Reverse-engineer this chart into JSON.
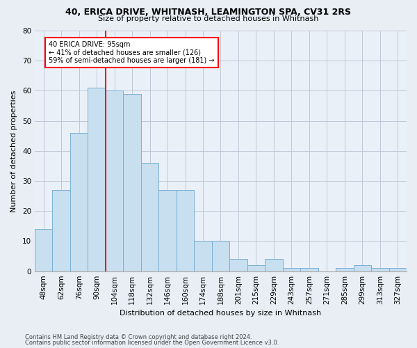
{
  "title1": "40, ERICA DRIVE, WHITNASH, LEAMINGTON SPA, CV31 2RS",
  "title2": "Size of property relative to detached houses in Whitnash",
  "xlabel": "Distribution of detached houses by size in Whitnash",
  "ylabel": "Number of detached properties",
  "bar_color": "#c8dff0",
  "bar_edge_color": "#7ab0d4",
  "categories": [
    "48sqm",
    "62sqm",
    "76sqm",
    "90sqm",
    "104sqm",
    "118sqm",
    "132sqm",
    "146sqm",
    "160sqm",
    "174sqm",
    "188sqm",
    "201sqm",
    "215sqm",
    "229sqm",
    "243sqm",
    "257sqm",
    "271sqm",
    "285sqm",
    "299sqm",
    "313sqm",
    "327sqm"
  ],
  "values": [
    14,
    27,
    46,
    61,
    60,
    59,
    36,
    27,
    27,
    10,
    10,
    4,
    2,
    4,
    1,
    1,
    0,
    1,
    2,
    1,
    1
  ],
  "ylim": [
    0,
    80
  ],
  "yticks": [
    0,
    10,
    20,
    30,
    40,
    50,
    60,
    70,
    80
  ],
  "annotation_line1": "40 ERICA DRIVE: 95sqm",
  "annotation_line2": "← 41% of detached houses are smaller (126)",
  "annotation_line3": "59% of semi-detached houses are larger (181) →",
  "red_line_bin": 3,
  "footer1": "Contains HM Land Registry data © Crown copyright and database right 2024.",
  "footer2": "Contains public sector information licensed under the Open Government Licence v3.0.",
  "background_color": "#e8eef4",
  "plot_bg_color": "#eaf0f8",
  "grid_color": "#c0c8d8",
  "title_fontsize": 9,
  "subtitle_fontsize": 8,
  "tick_fontsize": 7.5,
  "ylabel_fontsize": 8,
  "xlabel_fontsize": 8
}
